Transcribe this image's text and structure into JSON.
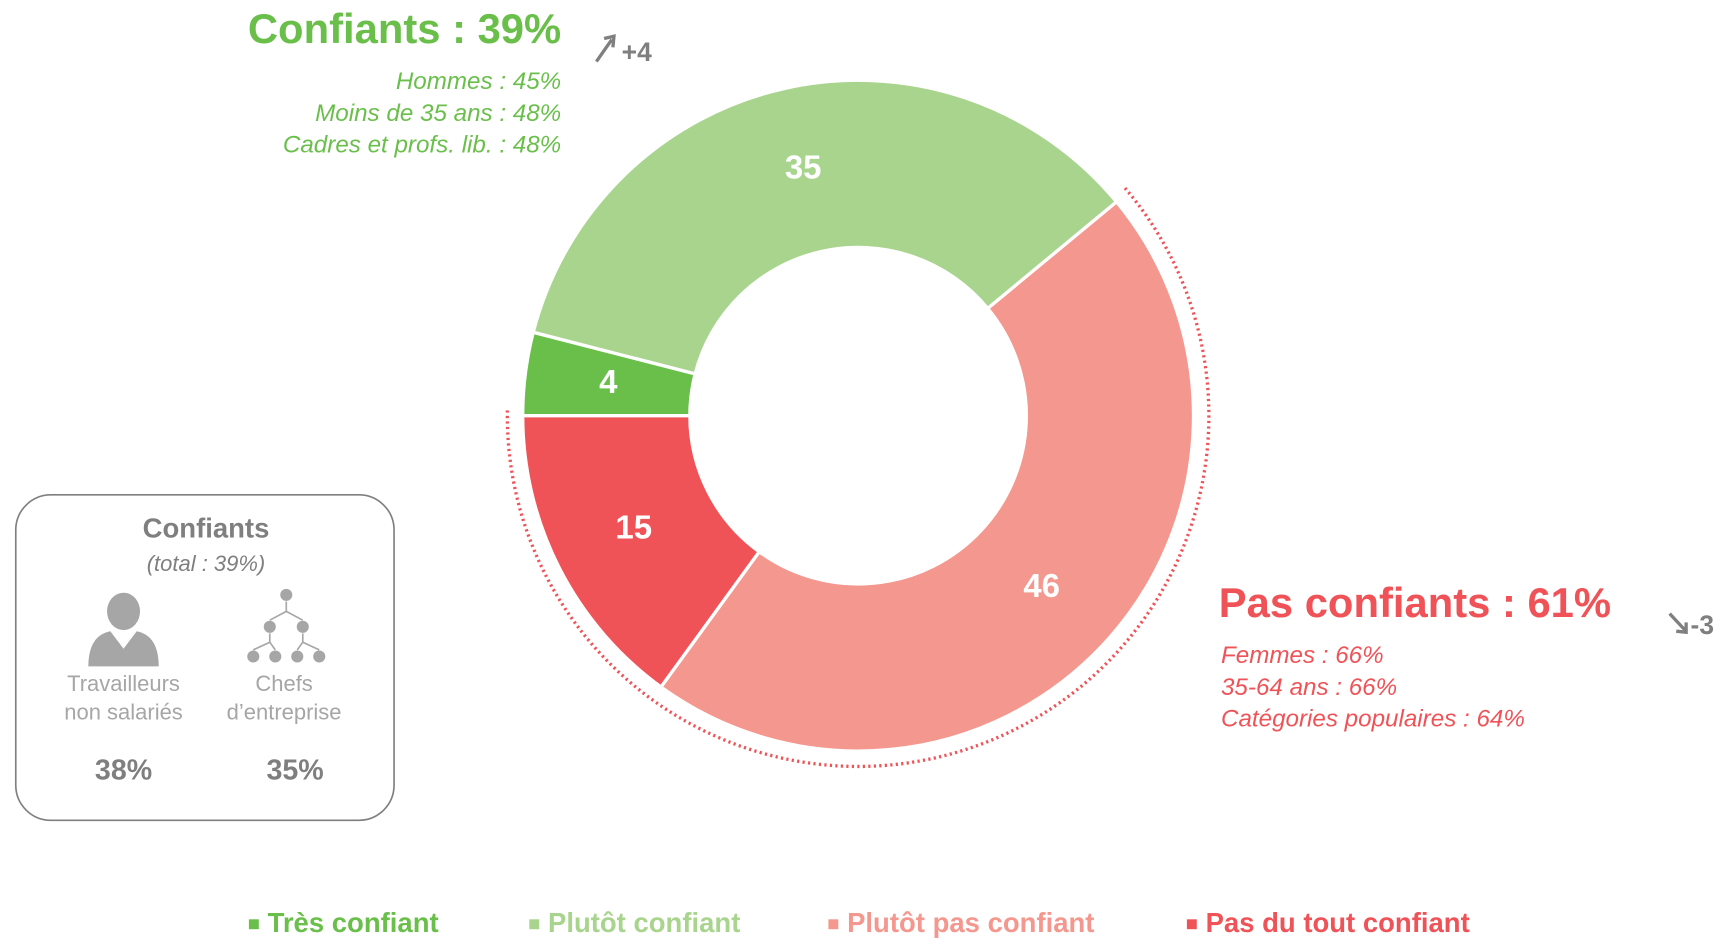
{
  "chart_data": {
    "type": "pie",
    "donut": true,
    "categories": [
      "Très confiant",
      "Plutôt confiant",
      "Plutôt pas confiant",
      "Pas du tout confiant"
    ],
    "values": [
      4,
      35,
      46,
      15
    ],
    "colors": [
      "#6abf4b",
      "#a9d48e",
      "#f4978e",
      "#ef5358"
    ],
    "groups": [
      {
        "title": "Confiants : 39%",
        "change": "+4",
        "color": "#6abf4b",
        "details": [
          "Hommes : 45%",
          "Moins de 35 ans : 48%",
          "Cadres et profs. lib. : 48%"
        ]
      },
      {
        "title": "Pas confiants : 61%",
        "change": "-3",
        "color": "#ef5358",
        "details": [
          "Femmes : 66%",
          "35-64 ans : 66%",
          "Catégories populaires : 64%"
        ]
      }
    ],
    "inset": {
      "title": "Confiants",
      "subtitle": "(total : 39%)",
      "items": [
        {
          "label": [
            "Travailleurs",
            "non salariés"
          ],
          "value": "38%"
        },
        {
          "label": [
            "Chefs",
            "d’entreprise"
          ],
          "value": "35%"
        }
      ]
    }
  }
}
